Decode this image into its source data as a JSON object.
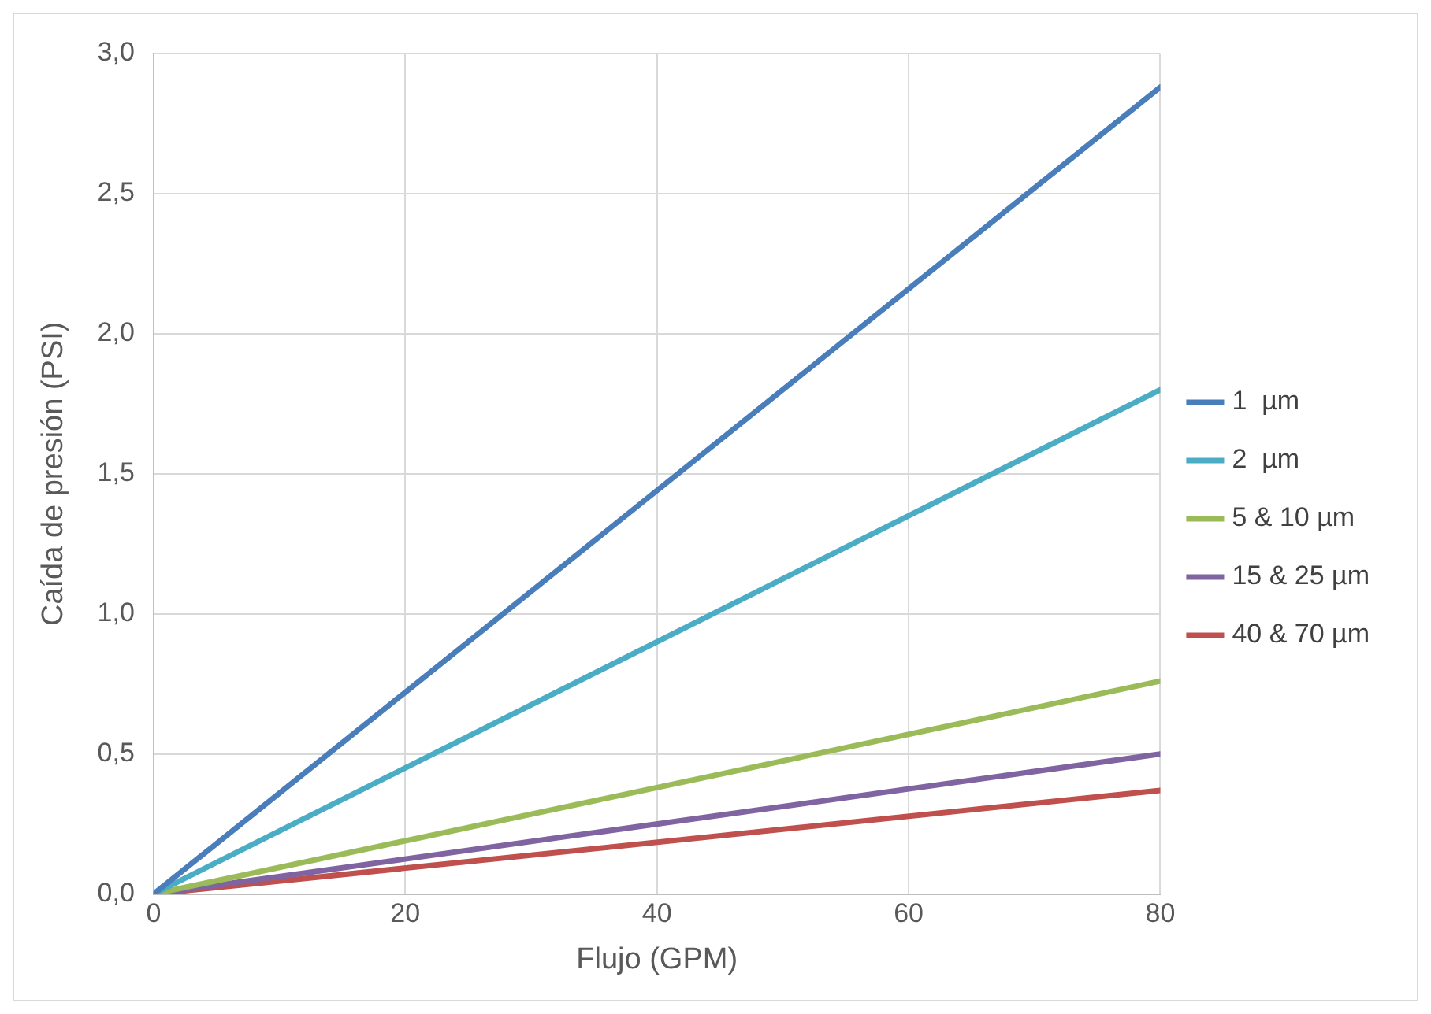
{
  "chart_data": {
    "type": "line",
    "xlabel": "Flujo (GPM)",
    "ylabel": "Caída de presión (PSI)",
    "x": [
      0,
      80
    ],
    "series": [
      {
        "name": "1  µm",
        "color": "#4a7ebb",
        "values": [
          0,
          2.88
        ]
      },
      {
        "name": "2  µm",
        "color": "#4bacc6",
        "values": [
          0,
          1.8
        ]
      },
      {
        "name": "5 & 10 µm",
        "color": "#9bbb59",
        "values": [
          0,
          0.76
        ]
      },
      {
        "name": "15 & 25 µm",
        "color": "#8064a2",
        "values": [
          0,
          0.5
        ]
      },
      {
        "name": "40 & 70 µm",
        "color": "#c0504d",
        "values": [
          0,
          0.37
        ]
      }
    ],
    "xlim": [
      0,
      80
    ],
    "xticks": [
      0,
      20,
      40,
      60,
      80
    ],
    "ylim": [
      0,
      3
    ],
    "yticks": [
      {
        "value": 0,
        "label": "0,0"
      },
      {
        "value": 0.5,
        "label": "0,5"
      },
      {
        "value": 1,
        "label": "1,0"
      },
      {
        "value": 1.5,
        "label": "1,5"
      },
      {
        "value": 2,
        "label": "2,0"
      },
      {
        "value": 2.5,
        "label": "2,5"
      },
      {
        "value": 3,
        "label": "3,0"
      }
    ],
    "grid": true,
    "legend": "right",
    "marker": "none",
    "line_style": "solid"
  }
}
